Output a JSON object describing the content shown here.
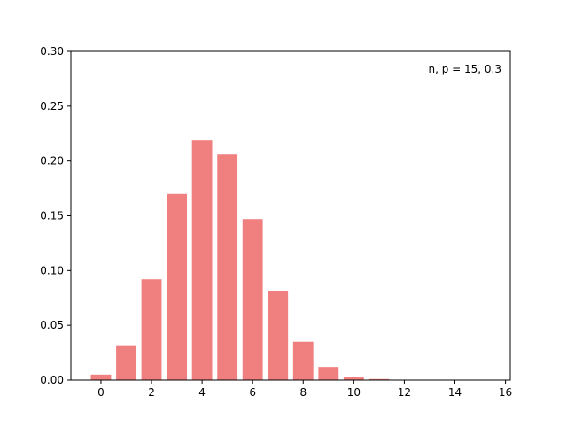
{
  "chart_data": {
    "type": "bar",
    "annotation": "n, p = 15, 0.3",
    "x": [
      0,
      1,
      2,
      3,
      4,
      5,
      6,
      7,
      8,
      9,
      10,
      11,
      12,
      13,
      14,
      15
    ],
    "values": [
      0.005,
      0.031,
      0.092,
      0.17,
      0.219,
      0.206,
      0.147,
      0.081,
      0.035,
      0.012,
      0.003,
      0.001,
      0,
      0,
      0,
      0
    ],
    "color": "#f08080",
    "xlim": [
      -1.19,
      16.19
    ],
    "xticks": [
      0,
      2,
      4,
      6,
      8,
      10,
      12,
      14,
      16
    ],
    "ylim": [
      0,
      0.3
    ],
    "yticks": [
      {
        "value": 0,
        "label": "0.00"
      },
      {
        "value": 0.05,
        "label": "0.05"
      },
      {
        "value": 0.1,
        "label": "0.10"
      },
      {
        "value": 0.15,
        "label": "0.15"
      },
      {
        "value": 0.2,
        "label": "0.20"
      },
      {
        "value": 0.25,
        "label": "0.25"
      },
      {
        "value": 0.3,
        "label": "0.30"
      }
    ]
  }
}
